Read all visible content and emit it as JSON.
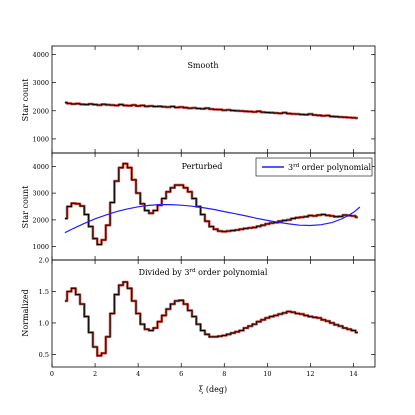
{
  "chart_data": [
    {
      "type": "line",
      "title": "Smooth",
      "ylabel": "Star count",
      "xlim": [
        0,
        15
      ],
      "ylim": [
        500,
        4300
      ],
      "yticks": [
        "1000",
        "2000",
        "3000",
        "4000"
      ],
      "series": [
        {
          "color": "#000000",
          "error_color": "#c0392b",
          "x": [
            0.6,
            0.8,
            1.0,
            1.2,
            1.4,
            1.6,
            1.8,
            2.0,
            2.2,
            2.4,
            2.6,
            2.8,
            3.0,
            3.2,
            3.4,
            3.6,
            3.8,
            4.0,
            4.2,
            4.4,
            4.6,
            4.8,
            5.0,
            5.2,
            5.4,
            5.6,
            5.8,
            6.0,
            6.2,
            6.4,
            6.6,
            6.8,
            7.0,
            7.2,
            7.4,
            7.6,
            7.8,
            8.0,
            8.2,
            8.4,
            8.6,
            8.8,
            9.0,
            9.2,
            9.4,
            9.6,
            9.8,
            10.0,
            10.2,
            10.4,
            10.6,
            10.8,
            11.0,
            11.2,
            11.4,
            11.6,
            11.8,
            12.0,
            12.2,
            12.4,
            12.6,
            12.8,
            13.0,
            13.2,
            13.4,
            13.6,
            13.8,
            14.0,
            14.2
          ],
          "y": [
            2290,
            2260,
            2240,
            2250,
            2230,
            2220,
            2240,
            2220,
            2200,
            2230,
            2210,
            2200,
            2190,
            2220,
            2190,
            2180,
            2200,
            2170,
            2190,
            2160,
            2170,
            2150,
            2160,
            2140,
            2130,
            2150,
            2120,
            2130,
            2110,
            2090,
            2100,
            2080,
            2070,
            2090,
            2060,
            2050,
            2040,
            2020,
            2030,
            2010,
            2000,
            1990,
            1980,
            1970,
            1960,
            1980,
            1950,
            1940,
            1930,
            1920,
            1910,
            1930,
            1900,
            1890,
            1880,
            1870,
            1860,
            1880,
            1850,
            1840,
            1820,
            1830,
            1800,
            1790,
            1780,
            1770,
            1760,
            1750,
            1740
          ]
        }
      ]
    },
    {
      "type": "line",
      "title": "Perturbed",
      "ylabel": "Star count",
      "xlim": [
        0,
        15
      ],
      "ylim": [
        500,
        4500
      ],
      "yticks": [
        "1000",
        "2000",
        "3000",
        "4000"
      ],
      "legend": {
        "label": "3rd order polynomial",
        "label_main": "3",
        "label_sup": "rd",
        "label_rest": " order polynomial",
        "location": "top-right"
      },
      "series": [
        {
          "color": "#000000",
          "error_color": "#c0392b",
          "x": [
            0.6,
            0.8,
            1.0,
            1.2,
            1.4,
            1.6,
            1.8,
            2.0,
            2.2,
            2.4,
            2.6,
            2.8,
            3.0,
            3.2,
            3.4,
            3.6,
            3.8,
            4.0,
            4.2,
            4.4,
            4.6,
            4.8,
            5.0,
            5.2,
            5.4,
            5.6,
            5.8,
            6.0,
            6.2,
            6.4,
            6.6,
            6.8,
            7.0,
            7.2,
            7.4,
            7.6,
            7.8,
            8.0,
            8.2,
            8.4,
            8.6,
            8.8,
            9.0,
            9.2,
            9.4,
            9.6,
            9.8,
            10.0,
            10.2,
            10.4,
            10.6,
            10.8,
            11.0,
            11.2,
            11.4,
            11.6,
            11.8,
            12.0,
            12.2,
            12.4,
            12.6,
            12.8,
            13.0,
            13.2,
            13.4,
            13.6,
            13.8,
            14.0,
            14.2
          ],
          "y": [
            2050,
            2500,
            2620,
            2600,
            2520,
            2200,
            1750,
            1300,
            1080,
            1250,
            1800,
            2650,
            3450,
            3950,
            4100,
            3950,
            3500,
            3000,
            2600,
            2350,
            2250,
            2350,
            2550,
            2800,
            3050,
            3200,
            3300,
            3300,
            3200,
            3050,
            2800,
            2500,
            2200,
            1950,
            1750,
            1650,
            1580,
            1560,
            1580,
            1600,
            1620,
            1650,
            1680,
            1700,
            1720,
            1760,
            1800,
            1850,
            1880,
            1900,
            1950,
            1980,
            2000,
            2050,
            2080,
            2100,
            2120,
            2160,
            2150,
            2180,
            2200,
            2170,
            2150,
            2120,
            2130,
            2180,
            2160,
            2150,
            2100
          ]
        },
        {
          "name": "3rd order polynomial",
          "color": "#1f1fff",
          "x": [
            0.6,
            1.0,
            1.5,
            2.0,
            2.5,
            3.0,
            3.5,
            4.0,
            4.5,
            5.0,
            5.5,
            6.0,
            6.5,
            7.0,
            7.5,
            8.0,
            8.5,
            9.0,
            9.5,
            10.0,
            10.5,
            11.0,
            11.5,
            12.0,
            12.5,
            13.0,
            13.5,
            14.0,
            14.3
          ],
          "y": [
            1520,
            1680,
            1870,
            2040,
            2180,
            2310,
            2410,
            2490,
            2540,
            2570,
            2570,
            2550,
            2510,
            2460,
            2390,
            2310,
            2230,
            2150,
            2060,
            1980,
            1910,
            1850,
            1800,
            1790,
            1820,
            1900,
            2050,
            2280,
            2480
          ]
        }
      ]
    },
    {
      "type": "line",
      "title": "Divided by 3rd order polynomial",
      "title_main": "Divided by 3",
      "title_sup": "rd",
      "title_rest": " order polynomial",
      "ylabel": "Normalized",
      "xlabel": "ξ (deg)",
      "xlim": [
        0,
        15
      ],
      "ylim": [
        0.3,
        2.0
      ],
      "xticks": [
        "0",
        "2",
        "4",
        "6",
        "8",
        "10",
        "12",
        "14"
      ],
      "yticks": [
        "0.5",
        "1.0",
        "1.5",
        "2.0"
      ],
      "series": [
        {
          "color": "#000000",
          "error_color": "#c0392b",
          "x": [
            0.6,
            0.8,
            1.0,
            1.2,
            1.4,
            1.6,
            1.8,
            2.0,
            2.2,
            2.4,
            2.6,
            2.8,
            3.0,
            3.2,
            3.4,
            3.6,
            3.8,
            4.0,
            4.2,
            4.4,
            4.6,
            4.8,
            5.0,
            5.2,
            5.4,
            5.6,
            5.8,
            6.0,
            6.2,
            6.4,
            6.6,
            6.8,
            7.0,
            7.2,
            7.4,
            7.6,
            7.8,
            8.0,
            8.2,
            8.4,
            8.6,
            8.8,
            9.0,
            9.2,
            9.4,
            9.6,
            9.8,
            10.0,
            10.2,
            10.4,
            10.6,
            10.8,
            11.0,
            11.2,
            11.4,
            11.6,
            11.8,
            12.0,
            12.2,
            12.4,
            12.6,
            12.8,
            13.0,
            13.2,
            13.4,
            13.6,
            13.8,
            14.0,
            14.2
          ],
          "y": [
            1.35,
            1.5,
            1.55,
            1.45,
            1.3,
            1.1,
            0.85,
            0.62,
            0.48,
            0.52,
            0.78,
            1.15,
            1.45,
            1.6,
            1.65,
            1.55,
            1.35,
            1.15,
            0.98,
            0.9,
            0.88,
            0.92,
            1.02,
            1.12,
            1.22,
            1.3,
            1.35,
            1.36,
            1.3,
            1.2,
            1.1,
            0.98,
            0.88,
            0.82,
            0.78,
            0.78,
            0.79,
            0.8,
            0.82,
            0.84,
            0.86,
            0.88,
            0.92,
            0.95,
            0.98,
            1.02,
            1.05,
            1.08,
            1.1,
            1.12,
            1.14,
            1.16,
            1.18,
            1.17,
            1.15,
            1.14,
            1.12,
            1.1,
            1.09,
            1.08,
            1.05,
            1.03,
            1.0,
            0.97,
            0.95,
            0.92,
            0.9,
            0.88,
            0.85
          ]
        }
      ]
    }
  ]
}
